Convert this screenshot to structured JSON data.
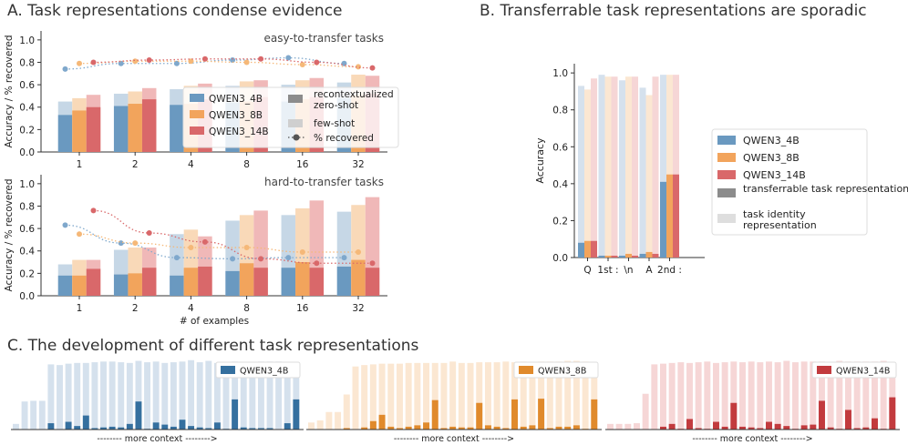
{
  "colors": {
    "qwen4": "#6a99c0",
    "qwen8": "#f2a45c",
    "qwen14": "#d9686a",
    "qwen4_light": "#c6d7e6",
    "qwen8_light": "#f9d9b8",
    "qwen14_light": "#f0b8b8",
    "qwen4_dark": "#35709f",
    "qwen8_dark": "#e08a2c",
    "qwen14_dark": "#c23b3e",
    "qwen4_pale": "#d5e1ed",
    "qwen8_pale": "#fbe7d2",
    "qwen14_pale": "#f6d6d6"
  },
  "panel_titles": {
    "a": "A. Task representations condense evidence",
    "b": "B. Transferrable task representations are sporadic",
    "c": "C. The development of different task representations"
  },
  "chart_data": [
    {
      "id": "a_easy",
      "type": "bar",
      "subtitle": "easy-to-transfer tasks",
      "categories": [
        "1",
        "2",
        "4",
        "8",
        "16",
        "32"
      ],
      "xlabel": "",
      "ylabel": "Accuracy / % recovered",
      "ylim": [
        0,
        1.08
      ],
      "yticks": [
        "0.0",
        "0.2",
        "0.4",
        "0.6",
        "0.8",
        "1.0"
      ],
      "series": [
        {
          "name": "QWEN3_4B",
          "zero_shot": [
            0.33,
            0.41,
            0.42,
            0.44,
            0.45,
            0.48
          ],
          "few_shot": [
            0.45,
            0.52,
            0.56,
            0.59,
            0.6,
            0.62
          ],
          "recovered": [
            0.74,
            0.79,
            0.79,
            0.82,
            0.84,
            0.79
          ]
        },
        {
          "name": "QWEN3_8B",
          "zero_shot": [
            0.37,
            0.43,
            0.43,
            0.45,
            0.47,
            0.51
          ],
          "few_shot": [
            0.48,
            0.54,
            0.59,
            0.63,
            0.64,
            0.69
          ],
          "recovered": [
            0.79,
            0.81,
            0.81,
            0.8,
            0.78,
            0.76
          ]
        },
        {
          "name": "QWEN3_14B",
          "zero_shot": [
            0.4,
            0.47,
            0.47,
            0.49,
            0.49,
            0.52
          ],
          "few_shot": [
            0.51,
            0.57,
            0.61,
            0.64,
            0.66,
            0.68
          ],
          "recovered": [
            0.8,
            0.82,
            0.83,
            0.83,
            0.8,
            0.75
          ]
        }
      ],
      "legend": {
        "models": [
          "QWEN3_4B",
          "QWEN3_8B",
          "QWEN3_14B"
        ],
        "styles": [
          "recontextualized zero-shot",
          "few-shot",
          "% recovered"
        ]
      }
    },
    {
      "id": "a_hard",
      "type": "bar",
      "subtitle": "hard-to-transfer tasks",
      "categories": [
        "1",
        "2",
        "4",
        "8",
        "16",
        "32"
      ],
      "xlabel": "# of examples",
      "ylabel": "Accuracy / % recovered",
      "ylim": [
        0,
        1.08
      ],
      "yticks": [
        "0.0",
        "0.2",
        "0.4",
        "0.6",
        "0.8",
        "1.0"
      ],
      "series": [
        {
          "name": "QWEN3_4B",
          "zero_shot": [
            0.18,
            0.19,
            0.18,
            0.22,
            0.25,
            0.26
          ],
          "few_shot": [
            0.28,
            0.41,
            0.55,
            0.67,
            0.72,
            0.75
          ],
          "recovered": [
            0.63,
            0.47,
            0.34,
            0.33,
            0.34,
            0.34
          ]
        },
        {
          "name": "QWEN3_8B",
          "zero_shot": [
            0.18,
            0.2,
            0.25,
            0.29,
            0.3,
            0.32
          ],
          "few_shot": [
            0.32,
            0.43,
            0.59,
            0.72,
            0.78,
            0.81
          ],
          "recovered": [
            0.55,
            0.47,
            0.43,
            0.43,
            0.39,
            0.39
          ]
        },
        {
          "name": "QWEN3_14B",
          "zero_shot": [
            0.24,
            0.25,
            0.26,
            0.25,
            0.25,
            0.25
          ],
          "few_shot": [
            0.32,
            0.43,
            0.53,
            0.76,
            0.85,
            0.88
          ],
          "recovered": [
            0.76,
            0.56,
            0.48,
            0.33,
            0.29,
            0.29
          ]
        }
      ]
    },
    {
      "id": "b",
      "type": "bar",
      "categories": [
        "Q",
        "1st :",
        "\\n",
        "A",
        "2nd :"
      ],
      "xlabel": "",
      "ylabel": "Accuracy",
      "ylim": [
        0,
        1.05
      ],
      "yticks": [
        "0.0",
        "0.2",
        "0.4",
        "0.6",
        "0.8",
        "1.0"
      ],
      "series": [
        {
          "name": "QWEN3_4B",
          "transferrable": [
            0.08,
            0.01,
            0.01,
            0.02,
            0.41
          ],
          "task_identity": [
            0.93,
            0.99,
            0.96,
            0.92,
            0.99
          ]
        },
        {
          "name": "QWEN3_8B",
          "transferrable": [
            0.09,
            0.01,
            0.02,
            0.03,
            0.45
          ],
          "task_identity": [
            0.91,
            0.98,
            0.98,
            0.88,
            0.99
          ]
        },
        {
          "name": "QWEN3_14B",
          "transferrable": [
            0.09,
            0.01,
            0.01,
            0.02,
            0.45
          ],
          "task_identity": [
            0.97,
            0.98,
            0.98,
            0.98,
            0.99
          ]
        }
      ],
      "legend": [
        "QWEN3_4B",
        "QWEN3_8B",
        "QWEN3_14B",
        "transferrable task representation",
        "task identity representation"
      ]
    },
    {
      "id": "c",
      "type": "bar",
      "xlabel": "--------  more context  -------->",
      "series": [
        {
          "name": "QWEN3_4B",
          "background": [
            0.08,
            0.4,
            0.41,
            0.41,
            0.93,
            0.92,
            0.94,
            0.95,
            0.95,
            0.96,
            0.97,
            0.97,
            0.96,
            0.95,
            0.98,
            0.96,
            0.97,
            0.95,
            0.96,
            0.97,
            0.99,
            0.96,
            0.98,
            0.95,
            0.96,
            0.97,
            0.95,
            0.96,
            0.97,
            0.97,
            0.97,
            0.96,
            0.95
          ],
          "foreground": [
            0.0,
            0.0,
            0.0,
            0.0,
            0.09,
            0.0,
            0.11,
            0.05,
            0.2,
            0.02,
            0.03,
            0.04,
            0.03,
            0.08,
            0.4,
            0.01,
            0.1,
            0.07,
            0.04,
            0.14,
            0.05,
            0.03,
            0.02,
            0.1,
            0.01,
            0.43,
            0.03,
            0.02,
            0.02,
            0.02,
            0.0,
            0.09,
            0.43
          ]
        },
        {
          "name": "QWEN3_8B",
          "background": [
            0.1,
            0.13,
            0.25,
            0.25,
            0.5,
            0.9,
            0.92,
            0.93,
            0.94,
            0.94,
            0.94,
            0.95,
            0.95,
            0.95,
            0.95,
            0.95,
            0.97,
            0.95,
            0.95,
            0.96,
            0.96,
            0.96,
            0.97,
            0.96,
            0.97,
            0.96,
            0.97,
            0.97,
            0.97,
            0.98,
            0.98,
            0.97,
            0.96
          ],
          "foreground": [
            0.0,
            0.0,
            0.0,
            0.0,
            0.02,
            0.0,
            0.03,
            0.12,
            0.21,
            0.04,
            0.02,
            0.04,
            0.06,
            0.1,
            0.42,
            0.02,
            0.04,
            0.03,
            0.03,
            0.38,
            0.06,
            0.04,
            0.02,
            0.43,
            0.04,
            0.06,
            0.44,
            0.02,
            0.04,
            0.04,
            0.06,
            0.01,
            0.43
          ]
        },
        {
          "name": "QWEN3_14B",
          "background": [
            0.08,
            0.08,
            0.08,
            0.09,
            0.51,
            0.93,
            0.94,
            0.95,
            0.96,
            0.95,
            0.96,
            0.97,
            0.95,
            0.96,
            0.97,
            0.96,
            0.97,
            0.96,
            0.97,
            0.96,
            0.98,
            0.96,
            0.97,
            0.97,
            0.97,
            0.96,
            0.98,
            0.97,
            0.97,
            0.97,
            0.97,
            0.98,
            0.96
          ],
          "foreground": [
            0.0,
            0.0,
            0.0,
            0.0,
            0.0,
            0.0,
            0.04,
            0.08,
            0.01,
            0.15,
            0.02,
            0.01,
            0.11,
            0.04,
            0.38,
            0.04,
            0.03,
            0.02,
            0.11,
            0.08,
            0.05,
            0.01,
            0.06,
            0.07,
            0.41,
            0.03,
            0.01,
            0.28,
            0.02,
            0.03,
            0.16,
            0.01,
            0.46
          ]
        }
      ]
    }
  ]
}
